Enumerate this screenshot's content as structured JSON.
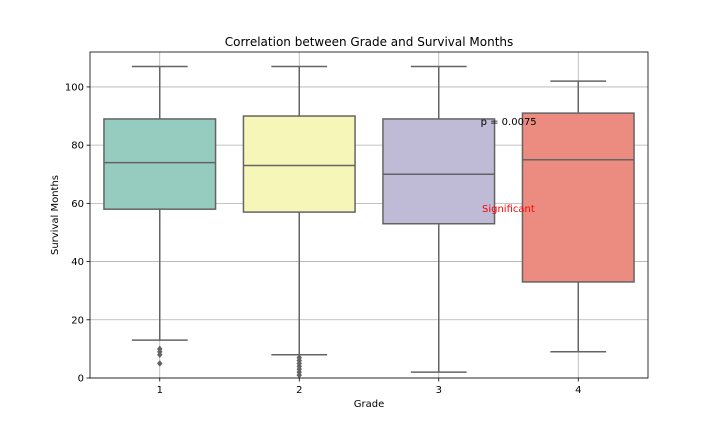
{
  "chart_data": {
    "type": "box",
    "title": "Correlation between Grade and Survival Months",
    "xlabel": "Grade",
    "ylabel": "Survival Months",
    "ylim": [
      0,
      112
    ],
    "yticks": [
      0,
      20,
      40,
      60,
      80,
      100
    ],
    "grid": true,
    "categories": [
      "1",
      "2",
      "3",
      "4"
    ],
    "boxes": [
      {
        "category": "1",
        "whisker_low": 13,
        "q1": 58,
        "median": 74,
        "q3": 89,
        "whisker_high": 107,
        "outliers": [
          5,
          8,
          9,
          10
        ],
        "color": "#96cbc0"
      },
      {
        "category": "2",
        "whisker_low": 8,
        "q1": 57,
        "median": 73,
        "q3": 90,
        "whisker_high": 107,
        "outliers": [
          1,
          2,
          3,
          4,
          5,
          6,
          7
        ],
        "color": "#f7f6b9"
      },
      {
        "category": "3",
        "whisker_low": 2,
        "q1": 53,
        "median": 70,
        "q3": 89,
        "whisker_high": 107,
        "outliers": [],
        "color": "#bfbad6"
      },
      {
        "category": "4",
        "whisker_low": 9,
        "q1": 33,
        "median": 75,
        "q3": 91,
        "whisker_high": 102,
        "outliers": [],
        "color": "#ec8c80"
      }
    ],
    "annotations": [
      {
        "text": "p = 0.0075",
        "color": "#000000",
        "x": 3.3,
        "y": 87
      },
      {
        "text": "Significant",
        "color": "#ff0000",
        "x": 3.31,
        "y": 57
      }
    ]
  }
}
